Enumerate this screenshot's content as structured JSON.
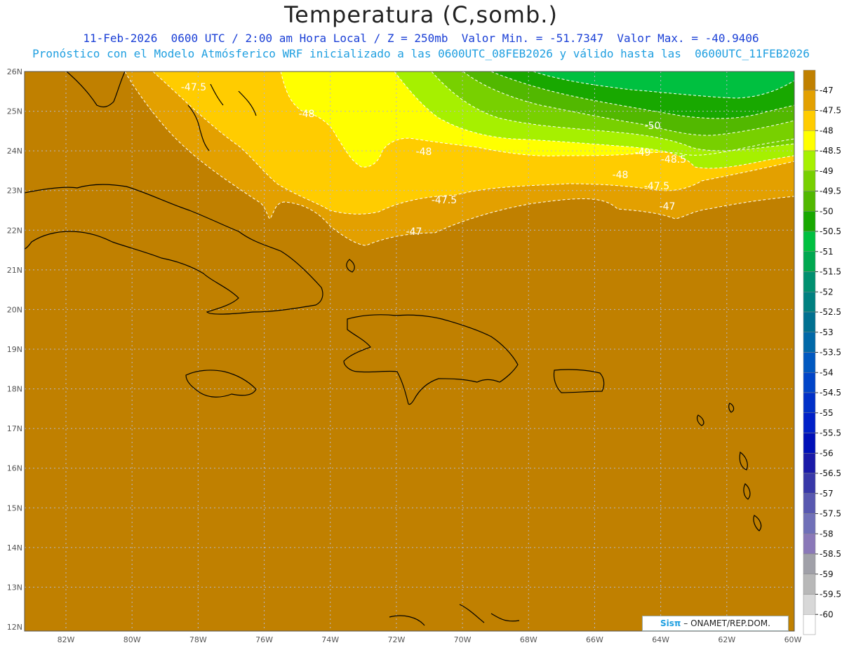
{
  "header": {
    "title": "Temperatura (C,somb.)",
    "line1": "11-Feb-2026  0600 UTC / 2:00 am Hora Local / Z = 250mb  Valor Min. = -51.7347  Valor Max. = -40.9406",
    "line2": "Pronóstico con el Modelo Atmósferico WRF inicializado a las 0600UTC_08FEB2026 y válido hasta las  0600UTC_11FEB2026"
  },
  "map": {
    "lat_labels": [
      "26N",
      "25N",
      "24N",
      "23N",
      "22N",
      "21N",
      "20N",
      "19N",
      "18N",
      "17N",
      "16N",
      "15N",
      "14N",
      "13N",
      "12N"
    ],
    "lon_labels": [
      "82W",
      "80W",
      "78W",
      "76W",
      "74W",
      "72W",
      "70W",
      "68W",
      "66W",
      "64W",
      "62W",
      "60W"
    ],
    "contour_labels": [
      "-47.5",
      "-48",
      "-48",
      "-50",
      "-49",
      "-48.5",
      "-48",
      "-47.5",
      "-47.5",
      "-47",
      "-47"
    ],
    "colors": {
      "fill_47": "#c08000",
      "fill_47_5": "#e3a000",
      "fill_48": "#ffcc00",
      "fill_48_5": "#ffff00",
      "fill_49": "#a6f000",
      "fill_49_5": "#78d000",
      "fill_50": "#52b800",
      "fill_50_5": "#18a800",
      "fill_51": "#00c040"
    }
  },
  "colorbar": {
    "labels": [
      "-47",
      "-47.5",
      "-48",
      "-48.5",
      "-49",
      "-49.5",
      "-50",
      "-50.5",
      "-51",
      "-51.5",
      "-52",
      "-52.5",
      "-53",
      "-53.5",
      "-54",
      "-54.5",
      "-55",
      "-55.5",
      "-56",
      "-56.5",
      "-57",
      "-57.5",
      "-58",
      "-58.5",
      "-59",
      "-59.5",
      "-60"
    ],
    "colors": [
      "#c08000",
      "#e3a000",
      "#ffcc00",
      "#ffff00",
      "#a6f000",
      "#78d000",
      "#52b800",
      "#18a800",
      "#00c040",
      "#00a850",
      "#009070",
      "#008080",
      "#007090",
      "#0068a8",
      "#0058c0",
      "#0044c8",
      "#0030c8",
      "#0020c8",
      "#0010b8",
      "#1a1aa8",
      "#3838a8",
      "#5858b0",
      "#7070b8",
      "#8a78b8",
      "#a0a0a8",
      "#b8b8b8",
      "#d8d8d8",
      "#ffffff"
    ]
  },
  "credit": {
    "brand": "Sisπ",
    "text": "– ONAMET/REP.DOM."
  }
}
